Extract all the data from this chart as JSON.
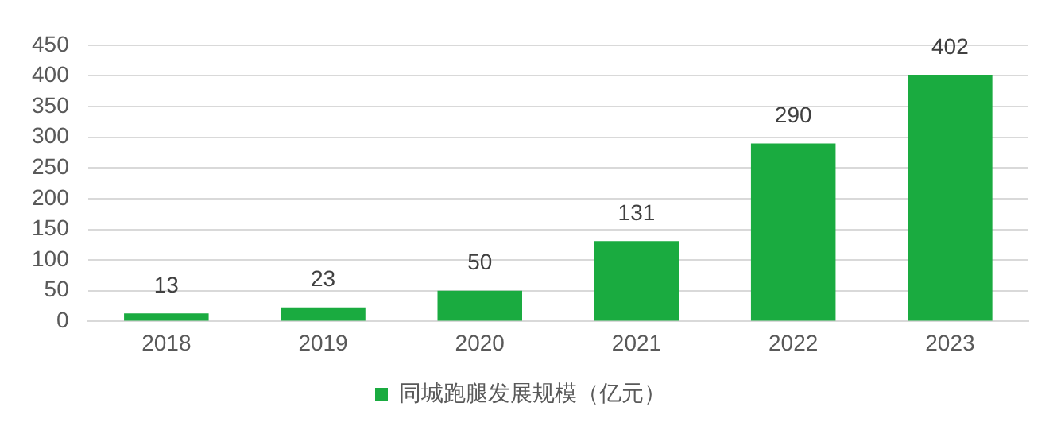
{
  "chart_data": {
    "type": "bar",
    "categories": [
      "2018",
      "2019",
      "2020",
      "2021",
      "2022",
      "2023"
    ],
    "series": [
      {
        "name": "同城跑腿发展规模（亿元）",
        "color": "#1aab40",
        "values": [
          13,
          23,
          50,
          131,
          290,
          402
        ]
      }
    ],
    "ylim": [
      0,
      450
    ],
    "yticks": [
      0,
      50,
      100,
      150,
      200,
      250,
      300,
      350,
      400,
      450
    ],
    "grid": "y",
    "legend": "bottom",
    "data_labels": true
  }
}
